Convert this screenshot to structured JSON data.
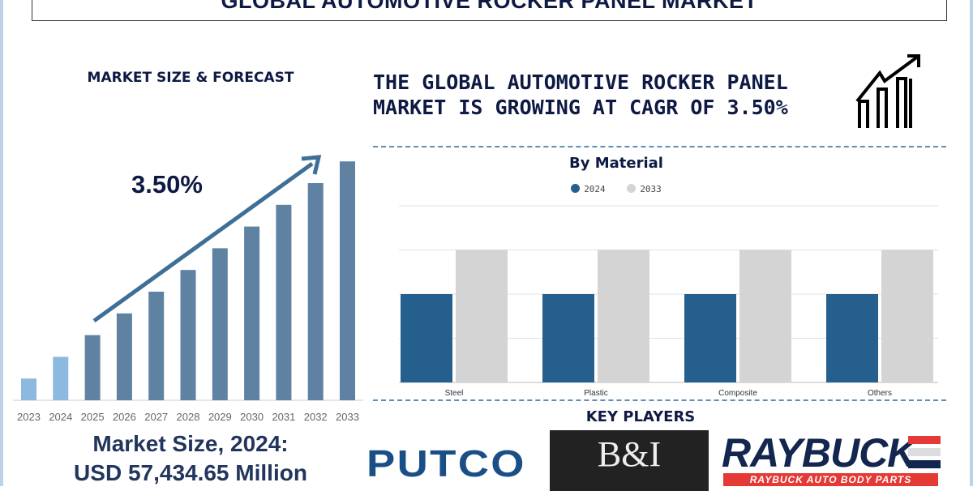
{
  "title": "GLOBAL AUTOMOTIVE ROCKER PANEL MARKET",
  "left_panel": {
    "heading": "MARKET SIZE & FORECAST",
    "cagr_label": "3.50%",
    "market_size_line1": "Market Size, 2024:",
    "market_size_line2": "USD 57,434.65 Million"
  },
  "right_panel": {
    "headline": "THE GLOBAL AUTOMOTIVE ROCKER PANEL MARKET IS GROWING AT CAGR OF 3.50%",
    "headline_icon": "growth-chart-icon",
    "key_players_heading": "KEY PLAYERS",
    "key_players": [
      "PUTCO",
      "B&I",
      "RAYBUCK AUTO BODY PARTS"
    ]
  },
  "colors": {
    "historic": "#8db8df",
    "forecast": "#5f82a3",
    "series_2024": "#245f8d",
    "series_2033": "#d4d4d4",
    "title": "#0e1a44"
  },
  "chart_data": [
    {
      "type": "bar",
      "title": "",
      "categories": [
        "2023",
        "2024",
        "2025",
        "2026",
        "2027",
        "2028",
        "2029",
        "2030",
        "2031",
        "2032",
        "2033"
      ],
      "values": [
        1,
        2,
        3,
        4,
        5,
        6,
        7,
        8,
        9,
        10,
        11
      ],
      "historic_categories": [
        "2023",
        "2024"
      ],
      "annotation": "3.50%",
      "xlabel": "",
      "ylabel": "",
      "grid": false
    },
    {
      "type": "bar",
      "title": "By Material",
      "categories": [
        "Steel",
        "Plastic",
        "Composite",
        "Others"
      ],
      "series": [
        {
          "name": "2024",
          "values": [
            2,
            2,
            2,
            2
          ]
        },
        {
          "name": "2033",
          "values": [
            3,
            3,
            3,
            3
          ]
        }
      ],
      "ylim": [
        0,
        4
      ],
      "grid": true,
      "legend": "top"
    }
  ]
}
